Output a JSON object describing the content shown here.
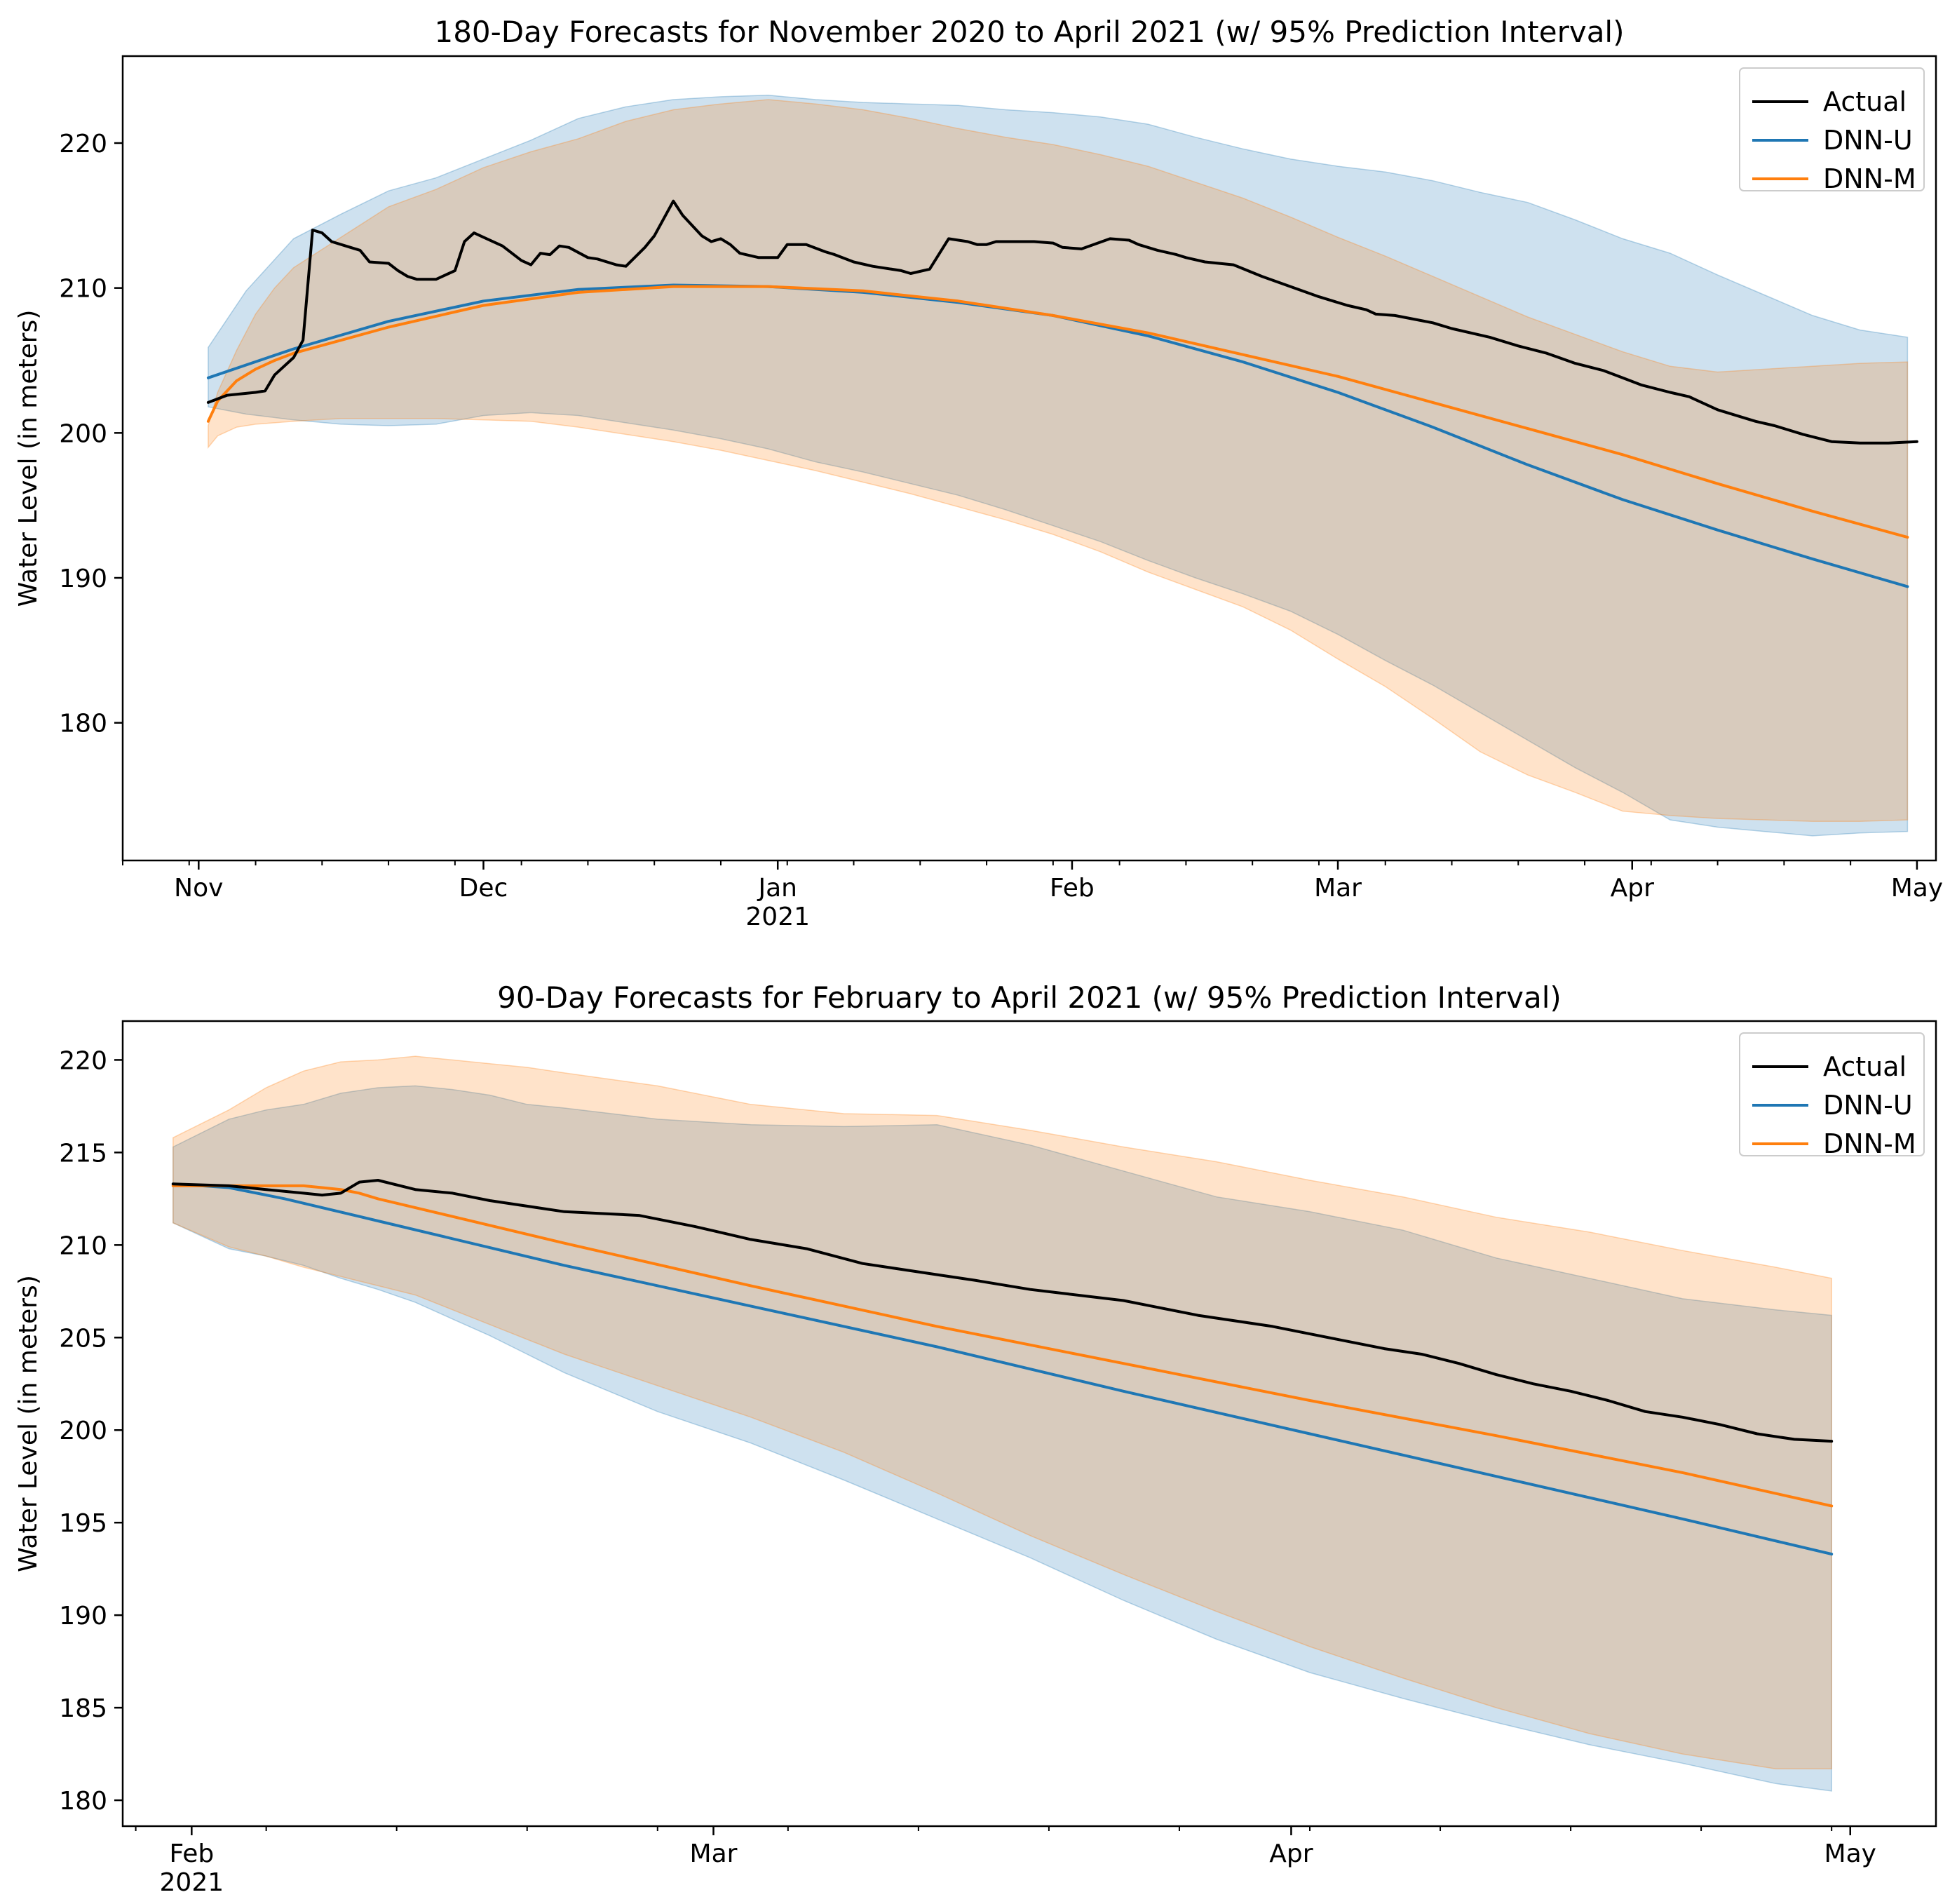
{
  "chart_data": [
    {
      "type": "line",
      "title": "180-Day Forecasts for November 2020 to April 2021 (w/ 95% Prediction Interval)",
      "xlabel": "",
      "ylabel": "Water Level (in meters)",
      "x_unit": "days since 2020-11-01",
      "xlim": [
        -8,
        183
      ],
      "ylim": [
        170.5,
        226
      ],
      "y_ticks": [
        180,
        190,
        200,
        210,
        220
      ],
      "x_ticks": [
        {
          "day": 0,
          "label": "Nov",
          "sublabel": ""
        },
        {
          "day": 30,
          "label": "Dec",
          "sublabel": ""
        },
        {
          "day": 61,
          "label": "Jan",
          "sublabel": "2021"
        },
        {
          "day": 92,
          "label": "Feb",
          "sublabel": ""
        },
        {
          "day": 120,
          "label": "Mar",
          "sublabel": ""
        },
        {
          "day": 151,
          "label": "Apr",
          "sublabel": ""
        },
        {
          "day": 181,
          "label": "May",
          "sublabel": ""
        }
      ],
      "legend": {
        "position": "top-right",
        "entries": [
          {
            "name": "Actual",
            "color": "#000000"
          },
          {
            "name": "DNN-U",
            "color": "#1f77b4"
          },
          {
            "name": "DNN-M",
            "color": "#ff7f0e"
          }
        ]
      },
      "series": [
        {
          "name": "Actual",
          "color": "#000000",
          "x": [
            1,
            3,
            6,
            7,
            8,
            10,
            11,
            12,
            13,
            14,
            16,
            17,
            18,
            20,
            21,
            22,
            23,
            25,
            27,
            28,
            29,
            30,
            32,
            34,
            35,
            36,
            37,
            38,
            39,
            41,
            42,
            44,
            45,
            47,
            48,
            50,
            51,
            53,
            54,
            55,
            56,
            57,
            59,
            61,
            62,
            64,
            66,
            67,
            69,
            71,
            74,
            75,
            77,
            79,
            81,
            82,
            83,
            84,
            86,
            88,
            90,
            91,
            93,
            96,
            98,
            99,
            100,
            101,
            103,
            104,
            106,
            109,
            112,
            115,
            118,
            121,
            123,
            124,
            126,
            130,
            132,
            136,
            139,
            142,
            145,
            148,
            150,
            152,
            155,
            157,
            160,
            163,
            164,
            166,
            169,
            172,
            175,
            178,
            181
          ],
          "y": [
            202.1,
            202.6,
            202.8,
            202.9,
            204.0,
            205.2,
            206.4,
            214.0,
            213.8,
            213.2,
            212.8,
            212.6,
            211.8,
            211.7,
            211.2,
            210.8,
            210.6,
            210.6,
            211.2,
            213.2,
            213.8,
            213.5,
            212.9,
            211.9,
            211.6,
            212.4,
            212.3,
            212.9,
            212.8,
            212.1,
            212.0,
            211.6,
            211.5,
            212.8,
            213.6,
            216.0,
            215.0,
            213.6,
            213.2,
            213.4,
            213.0,
            212.4,
            212.1,
            212.1,
            213.0,
            213.0,
            212.5,
            212.3,
            211.8,
            211.5,
            211.2,
            211.0,
            211.3,
            213.4,
            213.2,
            213.0,
            213.0,
            213.2,
            213.2,
            213.2,
            213.1,
            212.8,
            212.7,
            213.4,
            213.3,
            213.0,
            212.8,
            212.6,
            212.3,
            212.1,
            211.8,
            211.6,
            210.8,
            210.1,
            209.4,
            208.8,
            208.5,
            208.2,
            208.1,
            207.6,
            207.2,
            206.6,
            206.0,
            205.5,
            204.8,
            204.3,
            203.8,
            203.3,
            202.8,
            202.5,
            201.6,
            201.0,
            200.8,
            200.5,
            199.9,
            199.4,
            199.3,
            199.3,
            199.4
          ]
        },
        {
          "name": "DNN-U",
          "color": "#1f77b4",
          "x": [
            1,
            10,
            20,
            30,
            40,
            50,
            60,
            70,
            80,
            90,
            100,
            110,
            120,
            130,
            140,
            150,
            160,
            170,
            180
          ],
          "y": [
            203.8,
            205.8,
            207.7,
            209.1,
            209.9,
            210.2,
            210.1,
            209.7,
            209.0,
            208.1,
            206.7,
            204.9,
            202.8,
            200.4,
            197.8,
            195.4,
            193.3,
            191.3,
            189.4
          ]
        },
        {
          "name": "DNN-M",
          "color": "#ff7f0e",
          "x": [
            1,
            2,
            4,
            6,
            8,
            10,
            20,
            30,
            40,
            50,
            60,
            70,
            80,
            90,
            100,
            110,
            120,
            130,
            140,
            150,
            160,
            170,
            180
          ],
          "y": [
            200.8,
            202.2,
            203.6,
            204.4,
            205.0,
            205.5,
            207.3,
            208.8,
            209.7,
            210.1,
            210.1,
            209.8,
            209.1,
            208.1,
            206.9,
            205.4,
            203.9,
            202.1,
            200.3,
            198.5,
            196.5,
            194.6,
            192.8
          ]
        }
      ],
      "bands": [
        {
          "name": "DNN-U 95% PI",
          "color": "#1f77b4",
          "x": [
            1,
            5,
            10,
            15,
            20,
            25,
            30,
            35,
            40,
            45,
            50,
            55,
            60,
            65,
            70,
            75,
            80,
            85,
            90,
            95,
            100,
            105,
            110,
            115,
            120,
            125,
            130,
            135,
            140,
            145,
            150,
            155,
            160,
            165,
            170,
            175,
            180
          ],
          "upper": [
            205.9,
            209.8,
            213.4,
            215.1,
            216.7,
            217.6,
            218.9,
            220.2,
            221.7,
            222.5,
            223.0,
            223.2,
            223.3,
            223.0,
            222.8,
            222.7,
            222.6,
            222.3,
            222.1,
            221.8,
            221.3,
            220.4,
            219.6,
            218.9,
            218.4,
            218.0,
            217.4,
            216.6,
            215.9,
            214.7,
            213.4,
            212.4,
            210.9,
            209.5,
            208.1,
            207.1,
            206.6
          ],
          "lower": [
            201.8,
            201.3,
            200.9,
            200.6,
            200.5,
            200.6,
            201.2,
            201.4,
            201.2,
            200.7,
            200.2,
            199.6,
            198.9,
            198.0,
            197.3,
            196.5,
            195.7,
            194.7,
            193.6,
            192.5,
            191.2,
            190.0,
            188.9,
            187.7,
            186.1,
            184.3,
            182.6,
            180.7,
            178.8,
            176.9,
            175.2,
            173.3,
            172.8,
            172.5,
            172.2,
            172.4,
            172.5
          ]
        },
        {
          "name": "DNN-M 95% PI",
          "color": "#ff7f0e",
          "x": [
            1,
            2,
            4,
            6,
            8,
            10,
            15,
            20,
            25,
            30,
            35,
            40,
            45,
            50,
            55,
            60,
            65,
            70,
            75,
            80,
            85,
            90,
            95,
            100,
            105,
            110,
            115,
            120,
            125,
            130,
            135,
            140,
            145,
            150,
            155,
            160,
            165,
            170,
            175,
            180
          ],
          "upper": [
            200.5,
            202.8,
            205.7,
            208.2,
            210.0,
            211.4,
            213.5,
            215.6,
            216.8,
            218.3,
            219.4,
            220.3,
            221.5,
            222.3,
            222.7,
            223.0,
            222.7,
            222.3,
            221.7,
            221.0,
            220.4,
            219.9,
            219.2,
            218.4,
            217.3,
            216.2,
            214.9,
            213.5,
            212.2,
            210.8,
            209.4,
            208.0,
            206.8,
            205.6,
            204.6,
            204.2,
            204.4,
            204.6,
            204.8,
            204.9
          ],
          "lower": [
            199.0,
            199.8,
            200.4,
            200.6,
            200.7,
            200.8,
            201.0,
            201.0,
            201.0,
            200.9,
            200.8,
            200.4,
            199.9,
            199.4,
            198.8,
            198.1,
            197.4,
            196.6,
            195.8,
            194.9,
            194.0,
            193.0,
            191.8,
            190.4,
            189.2,
            188.0,
            186.4,
            184.4,
            182.5,
            180.3,
            178.0,
            176.4,
            175.2,
            173.9,
            173.6,
            173.4,
            173.3,
            173.2,
            173.2,
            173.3
          ]
        }
      ]
    },
    {
      "type": "line",
      "title": "90-Day Forecasts for February to April 2021 (w/ 95% Prediction Interval)",
      "xlabel": "",
      "ylabel": "Water Level (in meters)",
      "x_unit": "days since 2021-02-01",
      "xlim": [
        -3.7,
        93.6
      ],
      "ylim": [
        178.6,
        222.1
      ],
      "y_ticks": [
        180,
        185,
        190,
        195,
        200,
        205,
        210,
        215,
        220
      ],
      "x_ticks": [
        {
          "day": 0,
          "label": "Feb",
          "sublabel": "2021"
        },
        {
          "day": 28,
          "label": "Mar",
          "sublabel": ""
        },
        {
          "day": 59,
          "label": "Apr",
          "sublabel": ""
        },
        {
          "day": 89,
          "label": "May",
          "sublabel": ""
        }
      ],
      "legend": {
        "position": "top-right",
        "entries": [
          {
            "name": "Actual",
            "color": "#000000"
          },
          {
            "name": "DNN-U",
            "color": "#1f77b4"
          },
          {
            "name": "DNN-M",
            "color": "#ff7f0e"
          }
        ]
      },
      "series": [
        {
          "name": "Actual",
          "color": "#000000",
          "x": [
            -1,
            2,
            4,
            6,
            7,
            8,
            9,
            10,
            12,
            14,
            16,
            20,
            24,
            27,
            30,
            33,
            36,
            40,
            42,
            45,
            50,
            54,
            58,
            62,
            64,
            66,
            68,
            70,
            72,
            74,
            76,
            78,
            80,
            82,
            84,
            86,
            88
          ],
          "y": [
            213.3,
            213.2,
            213.0,
            212.8,
            212.7,
            212.8,
            213.4,
            213.5,
            213.0,
            212.8,
            212.4,
            211.8,
            211.6,
            211.0,
            210.3,
            209.8,
            209.0,
            208.4,
            208.1,
            207.6,
            207.0,
            206.2,
            205.6,
            204.8,
            204.4,
            204.1,
            203.6,
            203.0,
            202.5,
            202.1,
            201.6,
            201.0,
            200.7,
            200.3,
            199.8,
            199.5,
            199.4
          ]
        },
        {
          "name": "DNN-U",
          "color": "#1f77b4",
          "x": [
            -1,
            2,
            5,
            10,
            20,
            30,
            40,
            50,
            60,
            70,
            80,
            88
          ],
          "y": [
            213.3,
            213.1,
            212.5,
            211.3,
            208.9,
            206.7,
            204.5,
            202.1,
            199.8,
            197.5,
            195.2,
            193.3
          ]
        },
        {
          "name": "DNN-M",
          "color": "#ff7f0e",
          "x": [
            -1,
            2,
            4,
            6,
            7,
            8,
            9,
            10,
            20,
            30,
            40,
            50,
            60,
            70,
            80,
            88
          ],
          "y": [
            213.2,
            213.2,
            213.2,
            213.2,
            213.1,
            213.0,
            212.8,
            212.5,
            210.1,
            207.8,
            205.6,
            203.6,
            201.6,
            199.7,
            197.7,
            195.9
          ]
        }
      ],
      "bands": [
        {
          "name": "DNN-U 95% PI",
          "color": "#1f77b4",
          "x": [
            -1,
            2,
            4,
            6,
            8,
            10,
            12,
            14,
            16,
            18,
            20,
            25,
            30,
            35,
            40,
            45,
            50,
            55,
            60,
            65,
            70,
            75,
            80,
            85,
            88
          ],
          "upper": [
            215.3,
            216.8,
            217.3,
            217.6,
            218.2,
            218.5,
            218.6,
            218.4,
            218.1,
            217.6,
            217.4,
            216.8,
            216.5,
            216.4,
            216.5,
            215.4,
            214.0,
            212.6,
            211.8,
            210.8,
            209.3,
            208.2,
            207.1,
            206.5,
            206.2
          ],
          "lower": [
            211.2,
            209.8,
            209.4,
            208.9,
            208.2,
            207.6,
            206.9,
            206.0,
            205.1,
            204.1,
            203.1,
            201.0,
            199.3,
            197.3,
            195.2,
            193.1,
            190.8,
            188.7,
            186.9,
            185.5,
            184.2,
            183.0,
            182.0,
            180.9,
            180.5
          ]
        },
        {
          "name": "DNN-M 95% PI",
          "color": "#ff7f0e",
          "x": [
            -1,
            2,
            4,
            6,
            8,
            10,
            12,
            14,
            16,
            18,
            20,
            25,
            30,
            35,
            40,
            45,
            50,
            55,
            60,
            65,
            70,
            75,
            80,
            85,
            88
          ],
          "upper": [
            215.8,
            217.3,
            218.5,
            219.4,
            219.9,
            220.0,
            220.2,
            220.0,
            219.8,
            219.6,
            219.3,
            218.6,
            217.6,
            217.1,
            217.0,
            216.2,
            215.3,
            214.5,
            213.5,
            212.6,
            211.5,
            210.7,
            209.7,
            208.8,
            208.2
          ],
          "lower": [
            211.2,
            209.9,
            209.4,
            208.8,
            208.3,
            207.8,
            207.3,
            206.5,
            205.7,
            204.9,
            204.1,
            202.4,
            200.7,
            198.8,
            196.6,
            194.3,
            192.2,
            190.2,
            188.3,
            186.6,
            185.0,
            183.6,
            182.5,
            181.7,
            181.7
          ]
        }
      ]
    }
  ]
}
